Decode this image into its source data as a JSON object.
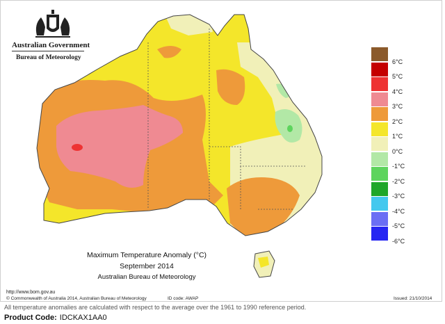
{
  "header": {
    "government": "Australian Government",
    "bureau": "Bureau of Meteorology"
  },
  "legend": {
    "items": [
      {
        "label": "6°C",
        "color": "#8b5a2b"
      },
      {
        "label": "5°C",
        "color": "#c40000"
      },
      {
        "label": "4°C",
        "color": "#ee3333"
      },
      {
        "label": "3°C",
        "color": "#ef8a92"
      },
      {
        "label": "2°C",
        "color": "#ee9a3a"
      },
      {
        "label": "1°C",
        "color": "#f4e62a"
      },
      {
        "label": "0°C",
        "color": "#f1f0b8"
      },
      {
        "label": "-1°C",
        "color": "#b2e8a6"
      },
      {
        "label": "-2°C",
        "color": "#5dd45d"
      },
      {
        "label": "-3°C",
        "color": "#1fa629"
      },
      {
        "label": "-4°C",
        "color": "#44c8ee"
      },
      {
        "label": "-5°C",
        "color": "#6a6ef4"
      },
      {
        "label": "-6°C",
        "color": "#2626f2"
      }
    ]
  },
  "caption": {
    "line1": "Maximum Temperature Anomaly (°C)",
    "line2": "September 2014",
    "line3": "Australian Bureau of Meteorology"
  },
  "footer": {
    "url": "http://www.bom.gov.au",
    "copyright": "© Commonwealth of Australia 2014, Australian Bureau of Meteorology",
    "id_code": "ID code: AWAP",
    "issued": "Issued: 21/10/2014",
    "note": "All temperature anomalies are calculated with respect to the average over the 1961 to 1990 reference period.",
    "product_label": "Product Code:",
    "product_code": "IDCKAX1AA0"
  }
}
